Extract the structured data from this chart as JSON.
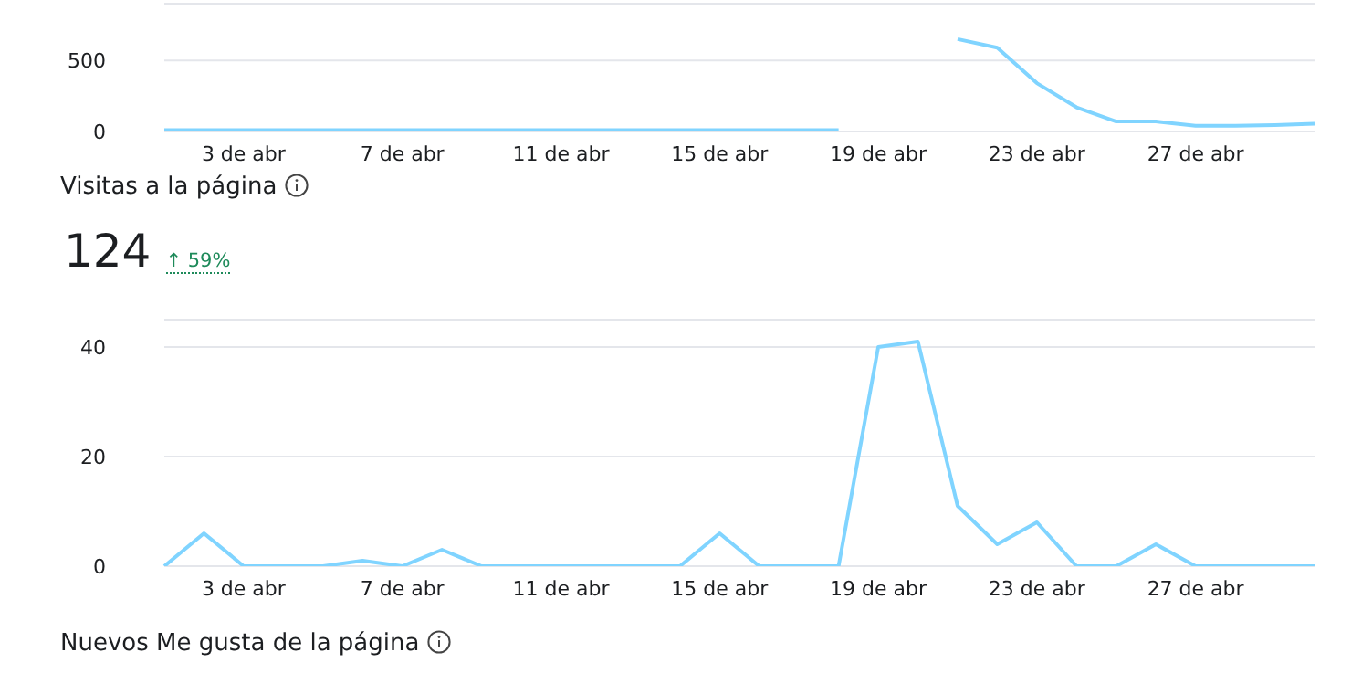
{
  "chart_data": [
    {
      "type": "line",
      "categories": [
        null,
        null,
        "3 de abr",
        null,
        null,
        null,
        "7 de abr",
        null,
        null,
        null,
        "11 de abr",
        null,
        null,
        null,
        "15 de abr",
        null,
        null,
        null,
        "19 de abr",
        null,
        null,
        null,
        "23 de abr",
        null,
        null,
        null,
        "27 de abr",
        null,
        null,
        null
      ],
      "values": [
        10,
        10,
        10,
        10,
        10,
        10,
        10,
        10,
        10,
        10,
        10,
        10,
        10,
        10,
        10,
        10,
        10,
        10,
        null,
        null,
        650,
        590,
        340,
        170,
        70,
        70,
        40,
        40,
        45,
        55
      ],
      "color": "#80d4ff",
      "ylim": [
        0,
        900
      ],
      "yticks": [
        0,
        500
      ],
      "grid": "y"
    },
    {
      "type": "line",
      "title": "Visitas a la página",
      "subtitle": "124",
      "annotations": [
        "↑ 59%"
      ],
      "categories": [
        null,
        null,
        "3 de abr",
        null,
        null,
        null,
        "7 de abr",
        null,
        null,
        null,
        "11 de abr",
        null,
        null,
        null,
        "15 de abr",
        null,
        null,
        null,
        "19 de abr",
        null,
        null,
        null,
        "23 de abr",
        null,
        null,
        null,
        "27 de abr",
        null,
        null,
        null
      ],
      "values": [
        0,
        6,
        0,
        0,
        0,
        1,
        0,
        3,
        0,
        0,
        0,
        0,
        0,
        0,
        6,
        0,
        0,
        0,
        40,
        41,
        11,
        4,
        8,
        0,
        0,
        4,
        0,
        0,
        0,
        0
      ],
      "color": "#80d4ff",
      "ylim": [
        0,
        45
      ],
      "yticks": [
        0,
        20,
        40
      ],
      "grid": "y"
    },
    {
      "type": "other",
      "title": "Nuevos Me gusta de la página"
    }
  ]
}
